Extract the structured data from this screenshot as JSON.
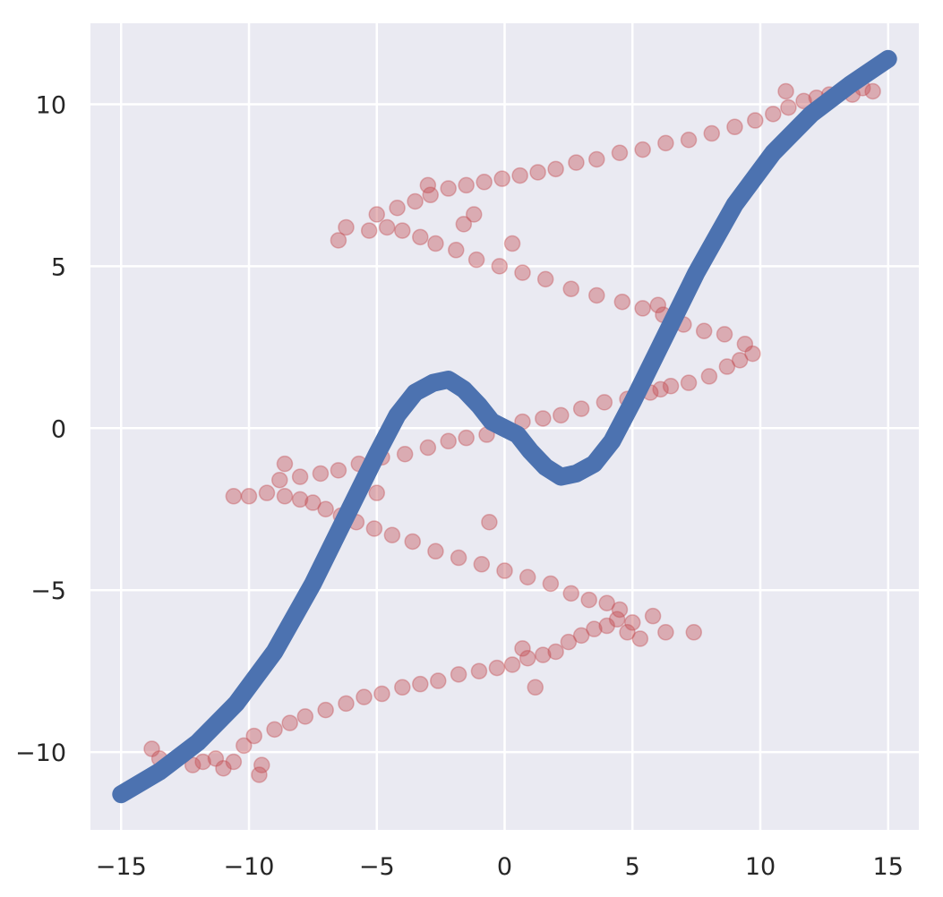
{
  "chart_data": {
    "type": "scatter",
    "title": "",
    "xlabel": "",
    "ylabel": "",
    "xlim": [
      -16.2,
      16.2
    ],
    "ylim": [
      -12.4,
      12.5
    ],
    "grid": true,
    "x_ticks": [
      -15,
      -10,
      -5,
      0,
      5,
      10,
      15
    ],
    "y_ticks": [
      -10,
      -5,
      0,
      5,
      10
    ],
    "x_tick_labels": [
      "−15",
      "−10",
      "−5",
      "0",
      "5",
      "10",
      "15"
    ],
    "y_tick_labels": [
      "−10",
      "−5",
      "0",
      "5",
      "10"
    ],
    "colors": {
      "background": "#EAEAF2",
      "grid": "#FFFFFF",
      "scatter": "#C44E52",
      "curve": "#4C72B0",
      "tick_text": "#262626"
    },
    "series": [
      {
        "kind": "scatter",
        "description_of_shape": "noisy samples of x = y + 7.5*sin(y)",
        "alpha": 0.4,
        "points": [
          [
            -13.8,
            -9.9
          ],
          [
            -13.5,
            -10.2
          ],
          [
            -13.0,
            -10.3
          ],
          [
            -12.6,
            -10.1
          ],
          [
            -12.2,
            -10.4
          ],
          [
            -11.8,
            -10.3
          ],
          [
            -11.3,
            -10.2
          ],
          [
            -11.0,
            -10.5
          ],
          [
            -10.6,
            -10.3
          ],
          [
            -10.2,
            -9.8
          ],
          [
            -9.8,
            -9.5
          ],
          [
            -9.5,
            -10.4
          ],
          [
            -9.0,
            -9.3
          ],
          [
            -8.4,
            -9.1
          ],
          [
            -7.8,
            -8.9
          ],
          [
            -7.0,
            -8.7
          ],
          [
            -6.2,
            -8.5
          ],
          [
            -5.5,
            -8.3
          ],
          [
            -4.8,
            -8.2
          ],
          [
            -4.0,
            -8.0
          ],
          [
            -3.3,
            -7.9
          ],
          [
            -2.6,
            -7.8
          ],
          [
            -1.8,
            -7.6
          ],
          [
            -1.0,
            -7.5
          ],
          [
            -0.3,
            -7.4
          ],
          [
            0.3,
            -7.3
          ],
          [
            0.9,
            -7.1
          ],
          [
            1.5,
            -7.0
          ],
          [
            2.0,
            -6.9
          ],
          [
            2.5,
            -6.6
          ],
          [
            3.0,
            -6.4
          ],
          [
            3.5,
            -6.2
          ],
          [
            4.0,
            -6.1
          ],
          [
            4.4,
            -5.9
          ],
          [
            4.8,
            -6.3
          ],
          [
            5.0,
            -6.0
          ],
          [
            5.3,
            -6.5
          ],
          [
            5.8,
            -5.8
          ],
          [
            6.3,
            -6.3
          ],
          [
            7.4,
            -6.3
          ],
          [
            4.5,
            -5.6
          ],
          [
            4.0,
            -5.4
          ],
          [
            3.3,
            -5.3
          ],
          [
            2.6,
            -5.1
          ],
          [
            1.8,
            -4.8
          ],
          [
            0.9,
            -4.6
          ],
          [
            0.0,
            -4.4
          ],
          [
            -0.9,
            -4.2
          ],
          [
            -1.8,
            -4.0
          ],
          [
            -2.7,
            -3.8
          ],
          [
            -3.6,
            -3.5
          ],
          [
            -4.4,
            -3.3
          ],
          [
            -5.1,
            -3.1
          ],
          [
            -5.8,
            -2.9
          ],
          [
            -6.4,
            -2.7
          ],
          [
            -7.0,
            -2.5
          ],
          [
            -7.5,
            -2.3
          ],
          [
            -8.0,
            -2.2
          ],
          [
            -8.6,
            -2.1
          ],
          [
            -9.3,
            -2.0
          ],
          [
            -10.0,
            -2.1
          ],
          [
            -10.6,
            -2.1
          ],
          [
            -8.8,
            -1.6
          ],
          [
            -8.0,
            -1.5
          ],
          [
            -7.2,
            -1.4
          ],
          [
            -6.5,
            -1.3
          ],
          [
            -5.7,
            -1.1
          ],
          [
            -4.8,
            -0.9
          ],
          [
            -3.9,
            -0.8
          ],
          [
            -3.0,
            -0.6
          ],
          [
            -2.2,
            -0.4
          ],
          [
            -1.5,
            -0.3
          ],
          [
            -0.7,
            -0.2
          ],
          [
            0.0,
            0.0
          ],
          [
            0.7,
            0.2
          ],
          [
            1.5,
            0.3
          ],
          [
            2.2,
            0.4
          ],
          [
            3.0,
            0.6
          ],
          [
            3.9,
            0.8
          ],
          [
            4.8,
            0.9
          ],
          [
            5.7,
            1.1
          ],
          [
            6.5,
            1.3
          ],
          [
            7.2,
            1.4
          ],
          [
            8.0,
            1.6
          ],
          [
            8.7,
            1.9
          ],
          [
            9.2,
            2.1
          ],
          [
            9.7,
            2.3
          ],
          [
            9.4,
            2.6
          ],
          [
            8.6,
            2.9
          ],
          [
            7.8,
            3.0
          ],
          [
            7.0,
            3.2
          ],
          [
            6.2,
            3.5
          ],
          [
            5.4,
            3.7
          ],
          [
            4.6,
            3.9
          ],
          [
            3.6,
            4.1
          ],
          [
            2.6,
            4.3
          ],
          [
            1.6,
            4.6
          ],
          [
            0.7,
            4.8
          ],
          [
            -0.2,
            5.0
          ],
          [
            -1.1,
            5.2
          ],
          [
            -1.9,
            5.5
          ],
          [
            -2.7,
            5.7
          ],
          [
            -3.3,
            5.9
          ],
          [
            -4.0,
            6.1
          ],
          [
            -4.6,
            6.2
          ],
          [
            -5.3,
            6.1
          ],
          [
            -6.2,
            6.2
          ],
          [
            -6.5,
            5.8
          ],
          [
            -5.0,
            6.6
          ],
          [
            -4.2,
            6.8
          ],
          [
            -3.5,
            7.0
          ],
          [
            -2.9,
            7.2
          ],
          [
            -2.2,
            7.4
          ],
          [
            -1.5,
            7.5
          ],
          [
            -0.8,
            7.6
          ],
          [
            -0.1,
            7.7
          ],
          [
            0.6,
            7.8
          ],
          [
            1.3,
            7.9
          ],
          [
            2.0,
            8.0
          ],
          [
            2.8,
            8.2
          ],
          [
            3.6,
            8.3
          ],
          [
            4.5,
            8.5
          ],
          [
            5.4,
            8.6
          ],
          [
            6.3,
            8.8
          ],
          [
            7.2,
            8.9
          ],
          [
            8.1,
            9.1
          ],
          [
            9.0,
            9.3
          ],
          [
            9.8,
            9.5
          ],
          [
            10.5,
            9.7
          ],
          [
            11.1,
            9.9
          ],
          [
            11.7,
            10.1
          ],
          [
            12.2,
            10.2
          ],
          [
            12.7,
            10.3
          ],
          [
            13.2,
            10.4
          ],
          [
            13.6,
            10.3
          ],
          [
            14.0,
            10.5
          ],
          [
            14.4,
            10.4
          ],
          [
            11.0,
            10.4
          ],
          [
            0.3,
            5.7
          ],
          [
            -1.2,
            6.6
          ],
          [
            -1.6,
            6.3
          ],
          [
            -3.0,
            7.5
          ],
          [
            0.7,
            -6.8
          ],
          [
            1.2,
            -8.0
          ],
          [
            -0.6,
            -2.9
          ],
          [
            -5.0,
            -2.0
          ],
          [
            -9.6,
            -10.7
          ],
          [
            6.1,
            1.2
          ],
          [
            6.0,
            3.8
          ],
          [
            -8.6,
            -1.1
          ]
        ]
      },
      {
        "kind": "line",
        "description_of_shape": "smooth fit curve",
        "points": [
          [
            -15.0,
            -11.3
          ],
          [
            -13.5,
            -10.6
          ],
          [
            -12.0,
            -9.7
          ],
          [
            -10.5,
            -8.5
          ],
          [
            -9.0,
            -6.9
          ],
          [
            -7.5,
            -4.8
          ],
          [
            -6.0,
            -2.4
          ],
          [
            -5.0,
            -0.8
          ],
          [
            -4.2,
            0.4
          ],
          [
            -3.5,
            1.1
          ],
          [
            -2.8,
            1.4
          ],
          [
            -2.2,
            1.5
          ],
          [
            -1.6,
            1.2
          ],
          [
            -1.0,
            0.7
          ],
          [
            -0.5,
            0.2
          ],
          [
            0.0,
            0.0
          ],
          [
            0.5,
            -0.2
          ],
          [
            1.0,
            -0.7
          ],
          [
            1.6,
            -1.2
          ],
          [
            2.2,
            -1.5
          ],
          [
            2.8,
            -1.4
          ],
          [
            3.5,
            -1.1
          ],
          [
            4.2,
            -0.4
          ],
          [
            5.0,
            0.8
          ],
          [
            6.0,
            2.4
          ],
          [
            7.5,
            4.8
          ],
          [
            9.0,
            6.9
          ],
          [
            10.5,
            8.5
          ],
          [
            12.0,
            9.7
          ],
          [
            13.5,
            10.6
          ],
          [
            15.0,
            11.4
          ]
        ]
      }
    ]
  }
}
